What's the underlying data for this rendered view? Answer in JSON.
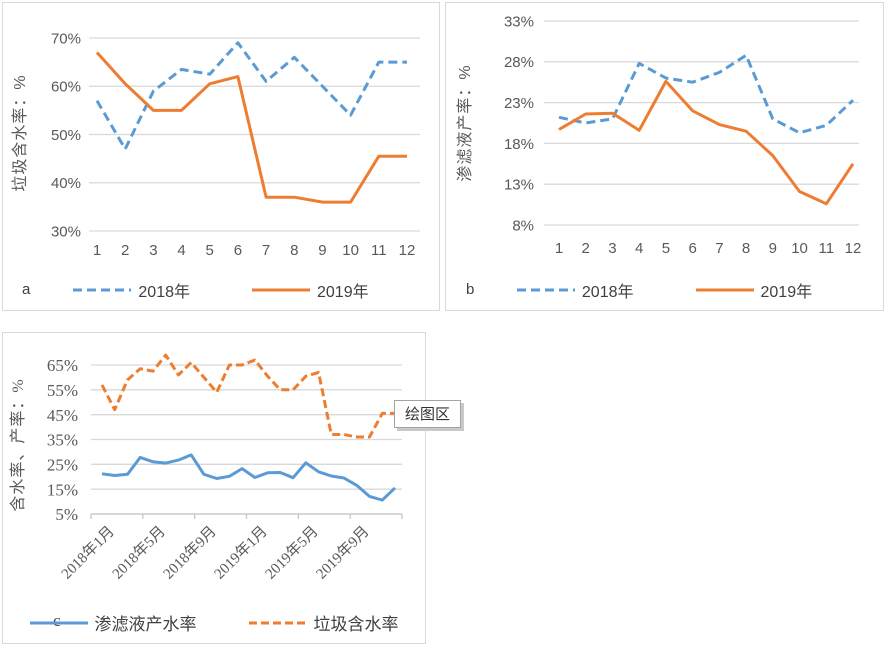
{
  "colors": {
    "series_blue": "#5B9BD5",
    "series_orange": "#ED7D31",
    "gridline": "#D9D9D9",
    "axis_line": "#C6C6C6",
    "tick_text": "#595959",
    "legend_text": "#404040",
    "chart_border": "#D9D9D9",
    "tooltip_border": "#A3A3A3",
    "tooltip_text": "#333333"
  },
  "chart_data": [
    {
      "id": "a",
      "type": "line",
      "panel_label": "a",
      "ylabel": "垃圾含水率：%",
      "x_categories": [
        "1",
        "2",
        "3",
        "4",
        "5",
        "6",
        "7",
        "8",
        "9",
        "10",
        "11",
        "12"
      ],
      "ylim": [
        30,
        70
      ],
      "ytick_values": [
        70,
        60,
        50,
        40,
        30
      ],
      "ytick_labels": [
        "70%",
        "60%",
        "50%",
        "40%",
        "30%"
      ],
      "grid": true,
      "legend_position": "bottom",
      "series": [
        {
          "name": "2018年",
          "color_key": "series_blue",
          "dash": true,
          "values": [
            57,
            47,
            59,
            63.5,
            62.5,
            69,
            61,
            66,
            60,
            54,
            65,
            65
          ]
        },
        {
          "name": "2019年",
          "color_key": "series_orange",
          "dash": false,
          "values": [
            67,
            60.5,
            55,
            55,
            60.5,
            62,
            37,
            37,
            36,
            36,
            45.5,
            45.5
          ]
        }
      ]
    },
    {
      "id": "b",
      "type": "line",
      "panel_label": "b",
      "ylabel": "渗滤液产率：%",
      "x_categories": [
        "1",
        "2",
        "3",
        "4",
        "5",
        "6",
        "7",
        "8",
        "9",
        "10",
        "11",
        "12"
      ],
      "ylim": [
        8,
        33
      ],
      "ytick_values": [
        33,
        28,
        23,
        18,
        13,
        8
      ],
      "ytick_labels": [
        "33%",
        "28%",
        "23%",
        "18%",
        "13%",
        "8%"
      ],
      "grid": true,
      "legend_position": "bottom",
      "series": [
        {
          "name": "2018年",
          "color_key": "series_blue",
          "dash": true,
          "values": [
            21.2,
            20.5,
            21,
            27.8,
            26,
            25.5,
            26.7,
            28.8,
            21,
            19.3,
            20.2,
            23.3
          ]
        },
        {
          "name": "2019年",
          "color_key": "series_orange",
          "dash": false,
          "values": [
            19.7,
            21.6,
            21.7,
            19.6,
            25.6,
            22,
            20.3,
            19.5,
            16.5,
            12.1,
            10.6,
            15.5
          ]
        }
      ]
    },
    {
      "id": "c",
      "type": "line",
      "panel_label": "c",
      "ylabel": "含水率、产率：%",
      "xtick_labels": [
        "2018年1月",
        "2018年5月",
        "2018年9月",
        "2019年1月",
        "2019年5月",
        "2019年9月"
      ],
      "xtick_rotation": -45,
      "ylim": [
        5,
        65
      ],
      "ytick_values": [
        65,
        55,
        45,
        35,
        25,
        15,
        5
      ],
      "ytick_labels": [
        "65%",
        "55%",
        "45%",
        "35%",
        "25%",
        "15%",
        "5%"
      ],
      "grid": true,
      "legend_position": "bottom",
      "tooltip": "绘图区",
      "series": [
        {
          "name": "渗滤液产水率",
          "color_key": "series_blue",
          "dash": false,
          "values": [
            21.2,
            20.5,
            21,
            27.8,
            26,
            25.5,
            26.7,
            28.8,
            21,
            19.3,
            20.2,
            23.3,
            19.7,
            21.6,
            21.7,
            19.6,
            25.6,
            22,
            20.3,
            19.5,
            16.5,
            12.1,
            10.6,
            15.5
          ]
        },
        {
          "name": "垃圾含水率",
          "color_key": "series_orange",
          "dash": true,
          "values": [
            57,
            47,
            59,
            63.5,
            62.5,
            69,
            61,
            66,
            60,
            54,
            65,
            65,
            67,
            60.5,
            55,
            55,
            60.5,
            62,
            37,
            37,
            36,
            36,
            45.5,
            45.5
          ]
        }
      ]
    }
  ]
}
